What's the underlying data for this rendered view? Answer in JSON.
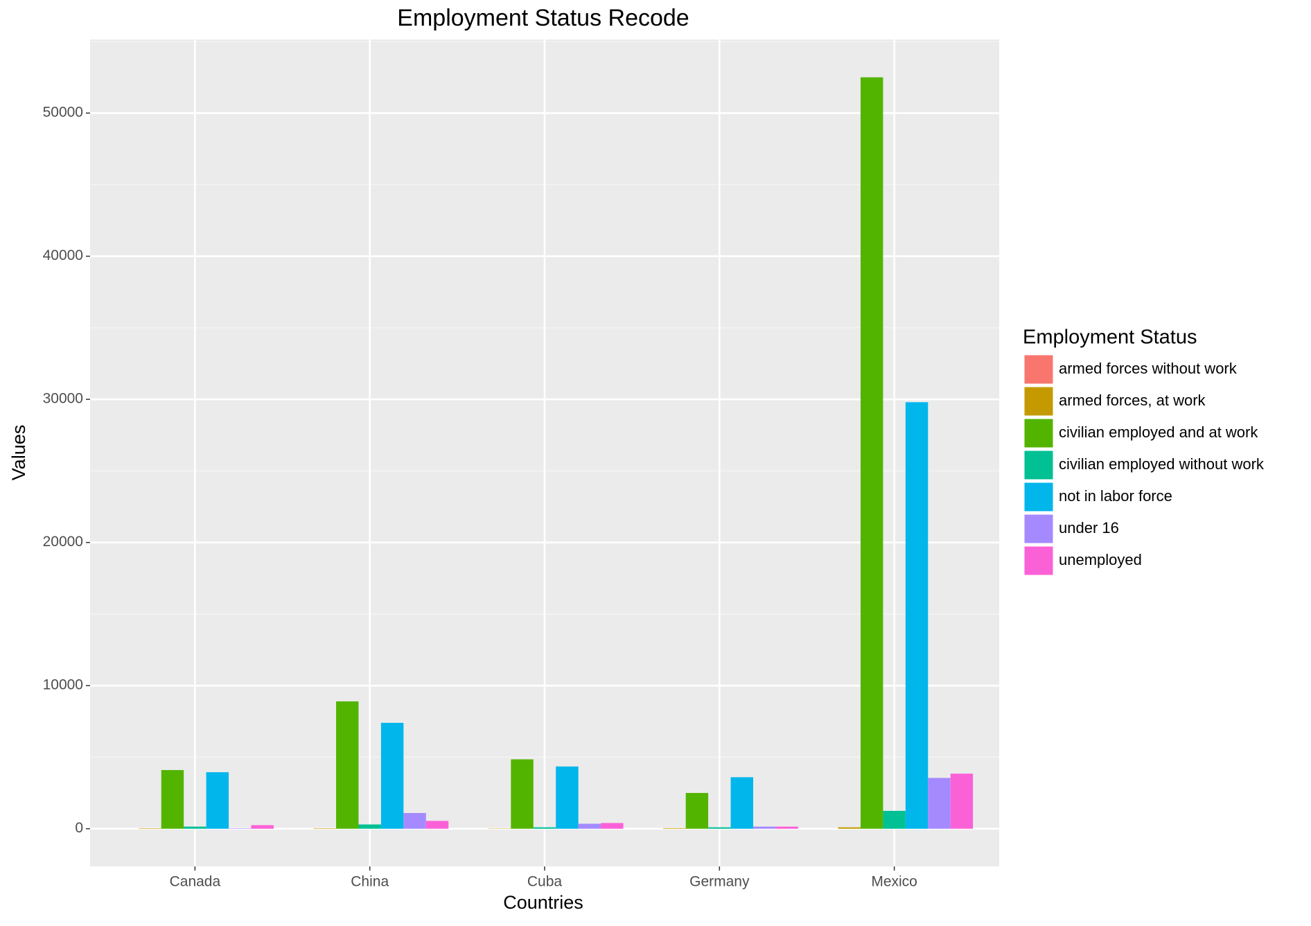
{
  "chart_data": {
    "type": "bar",
    "title": "Employment Status Recode",
    "x_label": "Countries",
    "y_label": "Values",
    "categories": [
      "Canada",
      "China",
      "Cuba",
      "Germany",
      "Mexico"
    ],
    "legend_title": "Employment Status",
    "series": [
      {
        "name": "armed forces without work",
        "color": "#F8766D",
        "values": [
          0,
          0,
          0,
          0,
          0
        ]
      },
      {
        "name": "armed forces, at work",
        "color": "#C49A00",
        "values": [
          30,
          30,
          20,
          40,
          100
        ]
      },
      {
        "name": "civilian employed and at work",
        "color": "#53B400",
        "values": [
          4100,
          8900,
          4850,
          2500,
          52500
        ]
      },
      {
        "name": "civilian employed without work",
        "color": "#00C094",
        "values": [
          150,
          300,
          100,
          100,
          1250
        ]
      },
      {
        "name": "not in labor force",
        "color": "#00B6EB",
        "values": [
          3950,
          7400,
          4350,
          3600,
          29800
        ]
      },
      {
        "name": "under 16",
        "color": "#A58AFF",
        "values": [
          30,
          1100,
          350,
          150,
          3550
        ]
      },
      {
        "name": "unemployed",
        "color": "#FB61D7",
        "values": [
          250,
          550,
          400,
          150,
          3850
        ]
      }
    ],
    "ylim": [
      -2630,
      55140
    ],
    "yticks": [
      0,
      10000,
      20000,
      30000,
      40000,
      50000
    ],
    "y_minor_grid": [
      5000,
      15000,
      25000,
      35000,
      45000,
      55000
    ],
    "grid": true,
    "legend_position": "right"
  }
}
